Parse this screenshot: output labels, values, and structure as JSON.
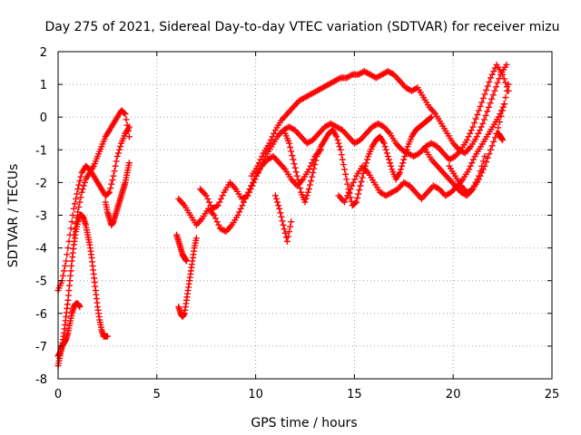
{
  "chart_data": {
    "type": "scatter",
    "title": "Day 275 of 2021, Sidereal Day-to-day VTEC variation (SDTVAR) for receiver mizu",
    "xlabel": "GPS time / hours",
    "ylabel": "SDTVAR / TECUs",
    "xlim": [
      0,
      25
    ],
    "ylim": [
      -8,
      2
    ],
    "xticks": [
      "0",
      "5",
      "10",
      "15",
      "20",
      "25"
    ],
    "yticks": [
      "2",
      "1",
      "0",
      "-1",
      "-2",
      "-3",
      "-4",
      "-5",
      "-6",
      "-7",
      "-8"
    ],
    "grid": true,
    "marker": "+",
    "color": "#ff0000",
    "series": [
      {
        "x": [
          0.0,
          0.1,
          0.2,
          0.3,
          0.4,
          0.5,
          0.6,
          0.7,
          0.8,
          0.9,
          1.0,
          1.1,
          1.2,
          1.3,
          1.4,
          1.5,
          1.6,
          1.7,
          1.8,
          1.9,
          2.0,
          2.1,
          2.2,
          2.3,
          2.4,
          2.5
        ],
        "y": [
          -7.3,
          -7.2,
          -7.0,
          -6.6,
          -6.1,
          -5.6,
          -5.0,
          -4.4,
          -3.9,
          -3.5,
          -3.2,
          -3.0,
          -3.0,
          -3.1,
          -3.3,
          -3.6,
          -3.9,
          -4.3,
          -4.8,
          -5.3,
          -5.8,
          -6.2,
          -6.5,
          -6.7,
          -6.7,
          -6.7
        ]
      },
      {
        "x": [
          0.0,
          0.2,
          0.4,
          0.6,
          0.8,
          1.0,
          1.2,
          1.4,
          1.6,
          1.8,
          2.0,
          2.2,
          2.4,
          2.6,
          2.8,
          3.0,
          3.2,
          3.4,
          3.6
        ],
        "y": [
          -5.3,
          -5.0,
          -4.4,
          -3.6,
          -2.8,
          -2.2,
          -1.7,
          -1.5,
          -1.6,
          -1.8,
          -2.0,
          -2.2,
          -2.4,
          -2.3,
          -1.8,
          -1.2,
          -0.8,
          -0.5,
          -0.3
        ]
      },
      {
        "x": [
          0.0,
          0.1,
          0.2,
          0.3,
          0.4,
          0.5,
          0.6,
          0.7,
          0.8,
          0.9,
          1.0,
          1.1
        ],
        "y": [
          -7.6,
          -7.3,
          -7.0,
          -6.9,
          -6.8,
          -6.6,
          -6.3,
          -6.0,
          -5.8,
          -5.7,
          -5.7,
          -5.8
        ]
      },
      {
        "x": [
          0.8,
          1.0,
          1.2,
          1.4,
          1.6,
          1.8,
          2.0,
          2.2,
          2.4,
          2.6,
          2.8,
          3.0,
          3.2,
          3.4,
          3.6
        ],
        "y": [
          -3.6,
          -2.9,
          -2.3,
          -1.9,
          -1.7,
          -1.5,
          -1.2,
          -0.9,
          -0.6,
          -0.4,
          -0.2,
          0.0,
          0.2,
          0.1,
          -0.6
        ]
      },
      {
        "x": [
          2.4,
          2.5,
          2.6,
          2.7,
          2.8,
          2.9,
          3.0,
          3.1,
          3.2,
          3.3,
          3.4,
          3.5,
          3.6
        ],
        "y": [
          -2.6,
          -2.9,
          -3.1,
          -3.3,
          -3.2,
          -3.0,
          -2.8,
          -2.6,
          -2.4,
          -2.2,
          -2.0,
          -1.7,
          -1.4
        ]
      },
      {
        "x": [
          6.1,
          6.2,
          6.3,
          6.4,
          6.5,
          6.6,
          6.7,
          6.8,
          6.9,
          7.0
        ],
        "y": [
          -5.8,
          -6.0,
          -6.1,
          -6.0,
          -5.6,
          -5.2,
          -4.8,
          -4.4,
          -4.0,
          -3.7
        ]
      },
      {
        "x": [
          6.0,
          6.1,
          6.2,
          6.3,
          6.4,
          6.5
        ],
        "y": [
          -3.6,
          -3.8,
          -4.0,
          -4.2,
          -4.3,
          -4.4
        ]
      },
      {
        "x": [
          6.1,
          6.4,
          6.7,
          7.0,
          7.3,
          7.6,
          7.9,
          8.2,
          8.5,
          8.8,
          9.1,
          9.4,
          9.7,
          10.0,
          10.3,
          10.6,
          10.9,
          11.2,
          11.5,
          11.8,
          12.1,
          12.4,
          12.7,
          13.0,
          13.3
        ],
        "y": [
          -2.5,
          -2.7,
          -3.0,
          -3.3,
          -3.1,
          -2.8,
          -3.0,
          -3.4,
          -3.5,
          -3.3,
          -3.0,
          -2.6,
          -2.2,
          -1.8,
          -1.5,
          -1.3,
          -1.2,
          -1.4,
          -1.6,
          -1.9,
          -2.1,
          -1.9,
          -1.6,
          -1.2,
          -1.0
        ]
      },
      {
        "x": [
          7.2,
          7.5,
          7.8,
          8.1,
          8.4,
          8.7,
          9.0,
          9.3,
          9.6,
          9.9,
          10.2,
          10.5,
          10.8,
          11.1,
          11.4,
          11.7,
          12.0,
          12.3,
          12.6,
          12.9,
          13.2,
          13.5,
          13.8,
          14.1,
          14.4,
          14.7,
          15.0,
          15.3,
          15.6,
          15.9,
          16.2,
          16.5,
          16.8,
          17.1,
          17.4,
          17.7,
          18.0,
          18.3,
          18.6,
          18.9,
          19.2,
          19.5,
          19.8,
          20.1,
          20.4,
          20.7,
          21.0,
          21.3,
          21.6,
          21.9,
          22.2,
          22.5,
          22.8
        ],
        "y": [
          -2.2,
          -2.4,
          -2.8,
          -2.7,
          -2.3,
          -2.0,
          -2.2,
          -2.5,
          -2.4,
          -2.0,
          -1.6,
          -1.2,
          -0.9,
          -0.6,
          -0.4,
          -0.3,
          -0.4,
          -0.6,
          -0.8,
          -0.7,
          -0.5,
          -0.3,
          -0.2,
          -0.3,
          -0.4,
          -0.6,
          -0.8,
          -0.7,
          -0.5,
          -0.3,
          -0.2,
          -0.3,
          -0.5,
          -0.8,
          -1.0,
          -1.1,
          -1.2,
          -1.1,
          -0.9,
          -0.8,
          -0.9,
          -1.1,
          -1.3,
          -1.2,
          -1.0,
          -0.7,
          -0.3,
          0.2,
          0.7,
          1.2,
          1.6,
          1.3,
          0.8
        ]
      },
      {
        "x": [
          9.8,
          10.1,
          10.4,
          10.7,
          11.0,
          11.3,
          11.6,
          11.9,
          12.2,
          12.5,
          12.8,
          13.1,
          13.4,
          13.7,
          14.0,
          14.3,
          14.6,
          14.9,
          15.2,
          15.5,
          15.8,
          16.1,
          16.4,
          16.7,
          17.0,
          17.3,
          17.6,
          17.9,
          18.2,
          18.5,
          18.8,
          19.1,
          19.4,
          19.7,
          20.0,
          20.3,
          20.6,
          20.9,
          21.2,
          21.5,
          21.8,
          22.1,
          22.4,
          22.7
        ],
        "y": [
          -1.8,
          -1.5,
          -1.1,
          -0.8,
          -0.4,
          -0.1,
          0.1,
          0.3,
          0.5,
          0.6,
          0.7,
          0.8,
          0.9,
          1.0,
          1.1,
          1.2,
          1.2,
          1.3,
          1.3,
          1.4,
          1.3,
          1.2,
          1.3,
          1.4,
          1.3,
          1.1,
          0.9,
          0.8,
          0.9,
          0.6,
          0.3,
          0.1,
          -0.2,
          -0.5,
          -0.8,
          -1.0,
          -1.1,
          -0.9,
          -0.6,
          -0.2,
          0.3,
          0.8,
          1.3,
          1.6
        ]
      },
      {
        "x": [
          11.5,
          11.7,
          11.9,
          12.1,
          12.3,
          12.5,
          12.7,
          12.9,
          13.1,
          13.3,
          13.5,
          13.7,
          13.9,
          14.1,
          14.3,
          14.5,
          14.7,
          14.9,
          15.1,
          15.3,
          15.5,
          15.7,
          15.9,
          16.1,
          16.3,
          16.5,
          16.7,
          16.9,
          17.1,
          17.3,
          17.5,
          17.7,
          17.9,
          18.1,
          18.3,
          18.5,
          18.7,
          18.9
        ],
        "y": [
          -0.5,
          -0.8,
          -1.3,
          -1.8,
          -2.3,
          -2.6,
          -2.2,
          -1.7,
          -1.2,
          -0.9,
          -0.7,
          -0.5,
          -0.4,
          -0.6,
          -1.0,
          -1.6,
          -2.2,
          -2.7,
          -2.6,
          -2.1,
          -1.6,
          -1.2,
          -0.9,
          -0.7,
          -0.6,
          -0.8,
          -1.2,
          -1.6,
          -1.9,
          -1.7,
          -1.3,
          -0.9,
          -0.6,
          -0.4,
          -0.3,
          -0.2,
          -0.1,
          0.0
        ]
      },
      {
        "x": [
          11.0,
          11.2,
          11.4,
          11.6,
          11.8
        ],
        "y": [
          -2.4,
          -2.8,
          -3.3,
          -3.8,
          -3.2
        ]
      },
      {
        "x": [
          14.2,
          14.5,
          14.8,
          15.1,
          15.4,
          15.7,
          16.0,
          16.3,
          16.6,
          16.9,
          17.2,
          17.5,
          17.8,
          18.1,
          18.4,
          18.7,
          19.0,
          19.3,
          19.6,
          19.9,
          20.2,
          20.5,
          20.8,
          21.1,
          21.4,
          21.7,
          22.0,
          22.3,
          22.6
        ],
        "y": [
          -2.4,
          -2.6,
          -2.2,
          -1.8,
          -1.5,
          -1.7,
          -2.0,
          -2.3,
          -2.4,
          -2.3,
          -2.2,
          -2.0,
          -2.1,
          -2.3,
          -2.5,
          -2.3,
          -2.1,
          -2.2,
          -2.4,
          -2.3,
          -2.1,
          -1.9,
          -1.6,
          -1.2,
          -0.9,
          -0.6,
          -0.3,
          0.0,
          0.4
        ]
      },
      {
        "x": [
          19.8,
          20.1,
          20.4,
          20.7,
          21.0,
          21.3,
          21.6,
          21.9,
          22.2,
          22.5,
          22.8
        ],
        "y": [
          -1.5,
          -1.8,
          -2.1,
          -2.3,
          -2.2,
          -1.9,
          -1.5,
          -1.0,
          -0.5,
          0.2,
          1.0
        ]
      },
      {
        "x": [
          18.6,
          18.9,
          19.2,
          19.5,
          19.8,
          20.1,
          20.4,
          20.7,
          21.0,
          21.3,
          21.6
        ],
        "y": [
          -1.0,
          -1.3,
          -1.5,
          -1.7,
          -1.9,
          -2.1,
          -2.3,
          -2.4,
          -2.2,
          -1.8,
          -1.2
        ]
      },
      {
        "x": [
          22.2,
          22.3,
          22.4,
          22.5
        ],
        "y": [
          -0.5,
          -0.5,
          -0.6,
          -0.7
        ]
      }
    ]
  }
}
